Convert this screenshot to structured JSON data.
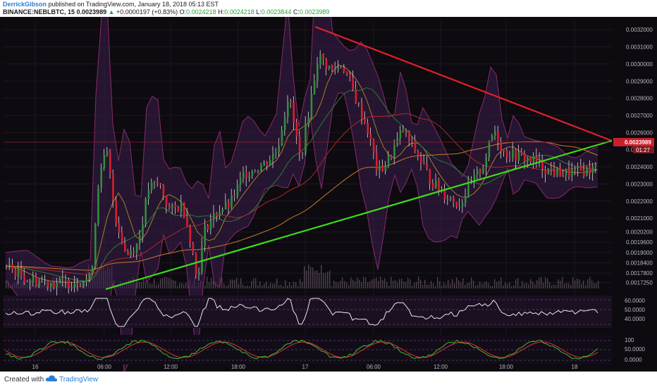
{
  "header": {
    "author": "DerrickGibson",
    "published": "published on TradingView.com, January 18, 2018 05:13 EST",
    "symbol": "BINANCE:NEBLBTC, 15",
    "last": "0.0023989",
    "change": "+0.0000197 (+0.83%)",
    "open_label": "O:",
    "open": "0.0024218",
    "high_label": "H:",
    "high": "0.0024218",
    "low_label": "L:",
    "low": "0.0023844",
    "close_label": "C:",
    "close": "0.0023989"
  },
  "footer": {
    "created": "Created with",
    "brand": "TradingView"
  },
  "chart_data": {
    "type": "candlestick",
    "price_axis": [
      "0.0032000",
      "0.0031000",
      "0.0030000",
      "0.0029000",
      "0.0028000",
      "0.0027000",
      "0.0026000",
      "0.0025000",
      "0.0024000",
      "0.0023000",
      "0.0022000",
      "0.0021000",
      "0.0020200",
      "0.0019600",
      "0.0019000",
      "0.0018400",
      "0.0017800",
      "0.0017250"
    ],
    "last_price_label": "0.0023989",
    "countdown_label": "01:27",
    "time_axis": [
      "16",
      "06:00",
      "12:00",
      "18:00",
      "17",
      "06:00",
      "12:00",
      "18:00",
      "18"
    ],
    "rsi_axis": [
      "60.0000",
      "50.0000",
      "40.0000"
    ],
    "stoch_axis": [
      "100",
      "50.0000",
      "0.0000"
    ],
    "trendlines": [
      {
        "name": "descending resistance",
        "color": "#e0202a"
      },
      {
        "name": "ascending support",
        "color": "#3ddc1a"
      }
    ],
    "colors": {
      "up": "#2f8f3a",
      "down": "#d81e2c",
      "background": "#0d0a10",
      "band": "#3a1f4a",
      "rsi": "#e8e8f0",
      "stoch_k": "#3fbf2a",
      "stoch_d": "#e0303a"
    }
  }
}
